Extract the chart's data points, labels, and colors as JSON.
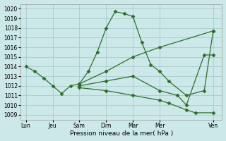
{
  "title": "",
  "xlabel": "Pression niveau de la mer( hPa )",
  "ylabel": "",
  "bg_color": "#cce8e8",
  "grid_color": "#aacccc",
  "line_color": "#2d6e2d",
  "ylim": [
    1008.5,
    1020.5
  ],
  "yticks": [
    1009,
    1010,
    1011,
    1012,
    1013,
    1014,
    1015,
    1016,
    1017,
    1018,
    1019,
    1020
  ],
  "xtick_labels": [
    "Lun",
    "Jeu",
    "Sam",
    "Dim",
    "Mar",
    "Mer",
    "Ven"
  ],
  "xtick_pos": [
    0,
    1.5,
    3,
    4.5,
    6,
    7.5,
    10.5
  ],
  "xlim": [
    -0.3,
    11.0
  ],
  "series": [
    {
      "x": [
        0,
        0.5,
        1.0,
        1.5,
        2.0,
        2.5,
        3.0,
        3.5,
        4.0,
        4.5,
        5.0,
        5.5,
        6.0,
        6.5,
        7.0,
        7.5,
        8.0,
        9.0,
        10.0,
        10.5
      ],
      "y": [
        1014.0,
        1013.5,
        1012.8,
        1012.0,
        1011.2,
        1012.0,
        1012.2,
        1013.5,
        1015.5,
        1018.0,
        1019.7,
        1019.5,
        1019.2,
        1016.5,
        1014.2,
        1013.5,
        1012.5,
        1011.0,
        1011.5,
        1017.7
      ]
    },
    {
      "x": [
        3.0,
        4.5,
        6.0,
        7.5,
        10.5
      ],
      "y": [
        1012.2,
        1013.5,
        1015.0,
        1016.0,
        1017.7
      ]
    },
    {
      "x": [
        3.0,
        4.5,
        6.0,
        7.5,
        8.5,
        9.0,
        10.0,
        10.5
      ],
      "y": [
        1012.0,
        1012.5,
        1013.0,
        1011.5,
        1011.0,
        1010.0,
        1015.2,
        1015.2
      ]
    },
    {
      "x": [
        3.0,
        4.5,
        6.0,
        7.5,
        8.0,
        9.0,
        9.5,
        10.5
      ],
      "y": [
        1011.8,
        1011.5,
        1011.0,
        1010.5,
        1010.2,
        1009.5,
        1009.2,
        1009.2
      ]
    }
  ]
}
